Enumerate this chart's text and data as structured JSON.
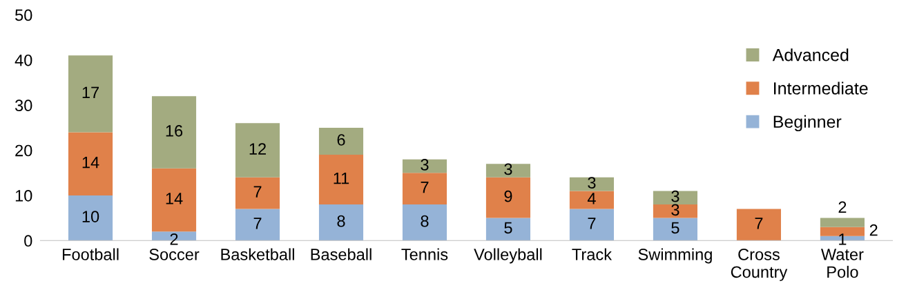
{
  "chart_data": {
    "type": "bar",
    "stacked": true,
    "categories": [
      "Football",
      "Soccer",
      "Basketball",
      "Baseball",
      "Tennis",
      "Volleyball",
      "Track",
      "Swimming",
      "Cross\nCountry",
      "Water\nPolo"
    ],
    "series": [
      {
        "name": "Beginner",
        "color": "#95b3d7",
        "values": [
          10,
          2,
          7,
          8,
          8,
          5,
          7,
          5,
          0,
          1
        ],
        "value_labels": [
          "10",
          "2",
          "7",
          "8",
          "8",
          "5",
          "7",
          "5",
          null,
          "1"
        ]
      },
      {
        "name": "Intermediate",
        "color": "#e0814a",
        "values": [
          14,
          14,
          7,
          11,
          7,
          9,
          4,
          3,
          7,
          2
        ],
        "value_labels": [
          "14",
          "14",
          "7",
          "11",
          "7",
          "9",
          "4",
          "3",
          "7",
          "2"
        ]
      },
      {
        "name": "Advanced",
        "color": "#a3ab80",
        "values": [
          17,
          16,
          12,
          6,
          3,
          3,
          3,
          3,
          0,
          2
        ],
        "value_labels": [
          "17",
          "16",
          "12",
          "6",
          "3",
          "3",
          "3",
          "3",
          null,
          "2"
        ]
      }
    ],
    "ylim": [
      0,
      50
    ],
    "yticks": [
      0,
      10,
      20,
      30,
      40,
      50
    ],
    "grid": false,
    "legend": "top right"
  }
}
